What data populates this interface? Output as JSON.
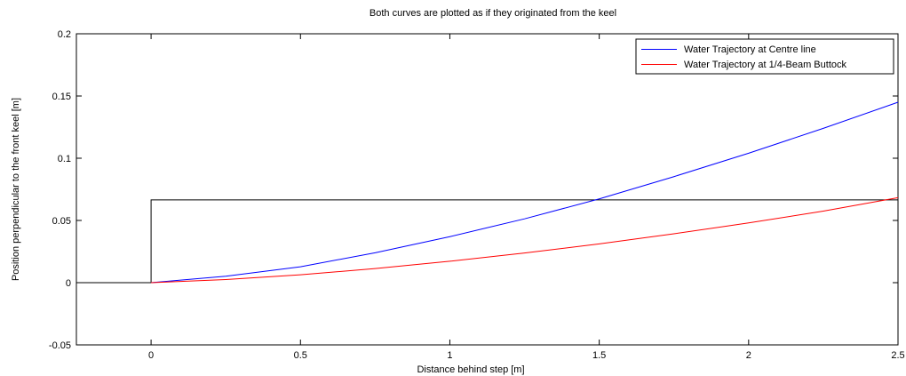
{
  "chart_data": {
    "type": "line",
    "title": "Both curves are plotted as if they originated from the keel",
    "xlabel": "Distance behind step [m]",
    "ylabel": "Position perpendicular to the front keel [m]",
    "xlim": [
      -0.25,
      2.5
    ],
    "ylim": [
      -0.05,
      0.2
    ],
    "xticks": [
      0,
      0.5,
      1,
      1.5,
      2,
      2.5
    ],
    "xtick_labels": [
      "0",
      "0.5",
      "1",
      "1.5",
      "2",
      "2.5"
    ],
    "yticks": [
      -0.05,
      0,
      0.05,
      0.1,
      0.15,
      0.2
    ],
    "ytick_labels": [
      "-0.05",
      "0",
      "0.05",
      "0.1",
      "0.15",
      "0.2"
    ],
    "grid": false,
    "legend_position": "top-right",
    "series": [
      {
        "name": "Water Trajectory at Centre line",
        "color": "#0000ff",
        "x": [
          0,
          0.25,
          0.5,
          0.75,
          1,
          1.25,
          1.5,
          1.75,
          2,
          2.25,
          2.5
        ],
        "y": [
          0,
          0.0052,
          0.0128,
          0.024,
          0.037,
          0.0513,
          0.0673,
          0.0852,
          0.104,
          0.124,
          0.145
        ]
      },
      {
        "name": "Water Trajectory at 1/4-Beam Buttock",
        "color": "#ff0000",
        "x": [
          0,
          0.25,
          0.5,
          0.75,
          1,
          1.25,
          1.5,
          1.75,
          2,
          2.25,
          2.5
        ],
        "y": [
          0,
          0.0025,
          0.0063,
          0.0113,
          0.0172,
          0.0238,
          0.0312,
          0.0393,
          0.048,
          0.0575,
          0.0683
        ]
      }
    ],
    "outline": {
      "color": "#000000",
      "x": [
        -0.25,
        0,
        0,
        2.5
      ],
      "y": [
        0,
        0,
        0.0665,
        0.0665
      ]
    }
  }
}
